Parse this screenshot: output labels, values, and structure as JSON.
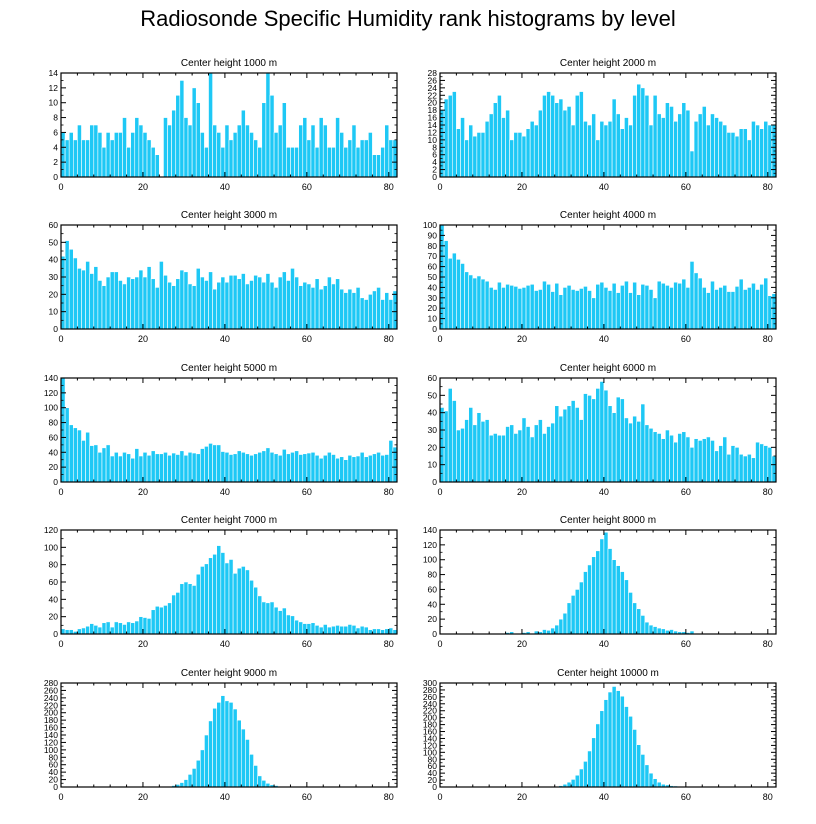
{
  "title": "Radiosonde Specific Humidity rank histograms by level",
  "bar_color": "#1ec8f5",
  "chart_data": [
    {
      "type": "bar",
      "title": "Center height 1000 m",
      "xlim": [
        0,
        82
      ],
      "xticks": [
        0,
        20,
        40,
        60,
        80
      ],
      "ylim": [
        0,
        14
      ],
      "yticks": [
        0,
        2,
        4,
        6,
        8,
        10,
        12,
        14
      ],
      "values": [
        6,
        5,
        6,
        5,
        7,
        5,
        5,
        7,
        7,
        6,
        4,
        6,
        5,
        6,
        6,
        8,
        4,
        6,
        8,
        7,
        6,
        5,
        4,
        3,
        0,
        8,
        7,
        9,
        11,
        13,
        8,
        7,
        12,
        10,
        6,
        4,
        14,
        7,
        6,
        4,
        7,
        5,
        6,
        7,
        9,
        7,
        6,
        5,
        4,
        10,
        14,
        11,
        6,
        7,
        10,
        4,
        4,
        4,
        7,
        8,
        5,
        7,
        4,
        8,
        7,
        4,
        4,
        8,
        6,
        4,
        5,
        7,
        4,
        5,
        5,
        6,
        3,
        3,
        4,
        7,
        5,
        5
      ]
    },
    {
      "type": "bar",
      "title": "Center height 2000 m",
      "xlim": [
        0,
        82
      ],
      "xticks": [
        0,
        20,
        40,
        60,
        80
      ],
      "ylim": [
        0,
        28
      ],
      "yticks": [
        0,
        2,
        4,
        6,
        8,
        10,
        12,
        14,
        16,
        18,
        20,
        22,
        24,
        26,
        28
      ],
      "values": [
        18,
        21,
        22,
        23,
        13,
        16,
        10,
        14,
        11,
        12,
        12,
        15,
        17,
        20,
        22,
        16,
        18,
        10,
        12,
        12,
        11,
        13,
        15,
        14,
        18,
        22,
        23,
        22,
        20,
        21,
        18,
        19,
        14,
        22,
        23,
        15,
        14,
        17,
        10,
        15,
        14,
        15,
        21,
        17,
        13,
        16,
        14,
        22,
        25,
        24,
        22,
        14,
        22,
        17,
        16,
        20,
        19,
        15,
        17,
        20,
        18,
        7,
        15,
        17,
        19,
        14,
        17,
        16,
        15,
        14,
        12,
        12,
        11,
        13,
        13,
        10,
        15,
        14,
        13,
        15,
        14,
        14
      ]
    },
    {
      "type": "bar",
      "title": "Center height 3000 m",
      "xlim": [
        0,
        82
      ],
      "xticks": [
        0,
        20,
        40,
        60,
        80
      ],
      "ylim": [
        0,
        60
      ],
      "yticks": [
        0,
        10,
        20,
        30,
        40,
        50,
        60
      ],
      "values": [
        42,
        51,
        46,
        41,
        35,
        34,
        39,
        32,
        36,
        28,
        25,
        30,
        33,
        33,
        28,
        26,
        30,
        29,
        30,
        34,
        30,
        36,
        29,
        24,
        39,
        31,
        27,
        25,
        29,
        34,
        33,
        26,
        25,
        35,
        30,
        28,
        33,
        23,
        27,
        30,
        27,
        31,
        31,
        29,
        32,
        26,
        28,
        31,
        30,
        27,
        32,
        27,
        24,
        30,
        33,
        28,
        35,
        30,
        25,
        27,
        26,
        24,
        29,
        23,
        25,
        30,
        26,
        29,
        23,
        21,
        23,
        21,
        24,
        18,
        17,
        20,
        22,
        24,
        17,
        21,
        17,
        22
      ]
    },
    {
      "type": "bar",
      "title": "Center height 4000 m",
      "xlim": [
        0,
        82
      ],
      "xticks": [
        0,
        20,
        40,
        60,
        80
      ],
      "ylim": [
        0,
        100
      ],
      "yticks": [
        0,
        10,
        20,
        30,
        40,
        50,
        60,
        70,
        80,
        90,
        100
      ],
      "values": [
        100,
        85,
        68,
        73,
        67,
        63,
        55,
        52,
        49,
        51,
        48,
        46,
        40,
        38,
        45,
        40,
        43,
        42,
        41,
        39,
        40,
        42,
        43,
        37,
        38,
        46,
        43,
        36,
        44,
        33,
        40,
        42,
        38,
        37,
        39,
        41,
        37,
        30,
        43,
        45,
        40,
        37,
        44,
        35,
        42,
        46,
        35,
        45,
        33,
        43,
        42,
        38,
        30,
        46,
        44,
        42,
        40,
        45,
        44,
        48,
        40,
        65,
        54,
        49,
        40,
        35,
        46,
        38,
        40,
        42,
        36,
        36,
        41,
        48,
        38,
        40,
        44,
        38,
        43,
        49,
        32,
        34
      ]
    },
    {
      "type": "bar",
      "title": "Center height 5000 m",
      "xlim": [
        0,
        82
      ],
      "xticks": [
        0,
        20,
        40,
        60,
        80
      ],
      "ylim": [
        0,
        140
      ],
      "yticks": [
        0,
        20,
        40,
        60,
        80,
        100,
        120,
        140
      ],
      "values": [
        140,
        100,
        77,
        73,
        70,
        56,
        67,
        49,
        50,
        40,
        46,
        50,
        35,
        40,
        35,
        40,
        38,
        32,
        45,
        35,
        40,
        36,
        42,
        38,
        38,
        40,
        36,
        39,
        37,
        42,
        36,
        40,
        39,
        38,
        45,
        48,
        52,
        50,
        50,
        41,
        40,
        37,
        38,
        42,
        40,
        38,
        36,
        38,
        40,
        42,
        46,
        40,
        38,
        36,
        44,
        38,
        40,
        42,
        37,
        38,
        39,
        40,
        36,
        32,
        36,
        40,
        37,
        32,
        34,
        30,
        36,
        34,
        35,
        40,
        34,
        36,
        38,
        40,
        36,
        37,
        56,
        47
      ]
    },
    {
      "type": "bar",
      "title": "Center height 6000 m",
      "xlim": [
        0,
        82
      ],
      "xticks": [
        0,
        20,
        40,
        60,
        80
      ],
      "ylim": [
        0,
        60
      ],
      "yticks": [
        0,
        10,
        20,
        30,
        40,
        50,
        60
      ],
      "values": [
        43,
        41,
        54,
        47,
        30,
        31,
        36,
        43,
        33,
        40,
        35,
        36,
        27,
        28,
        27,
        27,
        32,
        33,
        28,
        30,
        37,
        32,
        26,
        33,
        36,
        28,
        32,
        34,
        44,
        38,
        42,
        44,
        47,
        43,
        36,
        51,
        50,
        48,
        54,
        58,
        53,
        44,
        40,
        49,
        48,
        37,
        34,
        38,
        35,
        45,
        33,
        31,
        29,
        28,
        25,
        30,
        27,
        23,
        28,
        29,
        26,
        20,
        25,
        24,
        25,
        26,
        24,
        18,
        21,
        26,
        16,
        21,
        20,
        16,
        15,
        16,
        14,
        23,
        22,
        21,
        20,
        15
      ]
    },
    {
      "type": "bar",
      "title": "Center height 7000 m",
      "xlim": [
        0,
        82
      ],
      "xticks": [
        0,
        20,
        40,
        60,
        80
      ],
      "ylim": [
        0,
        120
      ],
      "yticks": [
        0,
        20,
        40,
        60,
        80,
        100,
        120
      ],
      "values": [
        6,
        5,
        5,
        3,
        6,
        7,
        9,
        12,
        10,
        8,
        13,
        14,
        8,
        14,
        13,
        11,
        14,
        13,
        15,
        20,
        19,
        18,
        28,
        32,
        31,
        33,
        36,
        45,
        48,
        58,
        60,
        58,
        56,
        69,
        78,
        81,
        88,
        92,
        102,
        94,
        82,
        86,
        70,
        76,
        78,
        74,
        62,
        54,
        44,
        37,
        36,
        37,
        31,
        27,
        30,
        22,
        21,
        16,
        14,
        12,
        12,
        13,
        10,
        8,
        11,
        8,
        9,
        10,
        9,
        9,
        11,
        10,
        7,
        9,
        8,
        5,
        6,
        6,
        5,
        6,
        7,
        5
      ]
    },
    {
      "type": "bar",
      "title": "Center height 8000 m",
      "xlim": [
        0,
        82
      ],
      "xticks": [
        0,
        20,
        40,
        60,
        80
      ],
      "ylim": [
        0,
        140
      ],
      "yticks": [
        0,
        20,
        40,
        60,
        80,
        100,
        120,
        140
      ],
      "values": [
        0,
        0,
        0,
        0,
        0,
        0,
        0,
        0,
        0,
        0,
        0,
        0,
        0,
        0,
        0,
        1,
        2,
        3,
        1,
        1,
        2,
        3,
        1,
        4,
        3,
        6,
        5,
        8,
        12,
        20,
        28,
        42,
        52,
        60,
        70,
        84,
        93,
        104,
        112,
        128,
        137,
        115,
        100,
        92,
        84,
        73,
        56,
        42,
        34,
        25,
        16,
        12,
        10,
        8,
        7,
        5,
        6,
        4,
        3,
        3,
        2,
        4,
        1,
        1,
        1,
        1,
        0,
        0,
        0,
        0,
        0,
        0,
        0,
        0,
        0,
        0,
        0,
        0,
        0,
        0,
        0,
        0
      ]
    },
    {
      "type": "bar",
      "title": "Center height 9000 m",
      "xlim": [
        0,
        82
      ],
      "xticks": [
        0,
        20,
        40,
        60,
        80
      ],
      "ylim": [
        0,
        280
      ],
      "yticks": [
        0,
        20,
        40,
        60,
        80,
        100,
        120,
        140,
        160,
        180,
        200,
        220,
        240,
        260,
        280
      ],
      "values": [
        0,
        0,
        0,
        0,
        0,
        0,
        0,
        0,
        0,
        0,
        0,
        0,
        0,
        0,
        0,
        0,
        0,
        0,
        0,
        0,
        0,
        0,
        0,
        0,
        0,
        1,
        2,
        4,
        7,
        12,
        20,
        34,
        50,
        72,
        100,
        140,
        178,
        212,
        228,
        246,
        232,
        228,
        210,
        180,
        156,
        128,
        88,
        58,
        30,
        18,
        10,
        6,
        4,
        2,
        1,
        1,
        0,
        0,
        0,
        0,
        0,
        0,
        0,
        0,
        0,
        0,
        0,
        0,
        0,
        0,
        0,
        0,
        0,
        0,
        0,
        0,
        0,
        0,
        0,
        0,
        0,
        0
      ]
    },
    {
      "type": "bar",
      "title": "Center height 10000 m",
      "xlim": [
        0,
        82
      ],
      "xticks": [
        0,
        20,
        40,
        60,
        80
      ],
      "ylim": [
        0,
        300
      ],
      "yticks": [
        0,
        20,
        40,
        60,
        80,
        100,
        120,
        140,
        160,
        180,
        200,
        220,
        240,
        260,
        280,
        300
      ],
      "values": [
        0,
        0,
        0,
        0,
        0,
        0,
        0,
        0,
        0,
        0,
        0,
        0,
        0,
        0,
        0,
        0,
        0,
        0,
        0,
        0,
        0,
        0,
        0,
        0,
        0,
        0,
        0,
        1,
        2,
        4,
        8,
        14,
        22,
        34,
        52,
        74,
        104,
        142,
        182,
        220,
        252,
        274,
        290,
        278,
        262,
        232,
        204,
        166,
        122,
        94,
        64,
        40,
        24,
        14,
        8,
        6,
        4,
        3,
        2,
        1,
        1,
        1,
        0,
        0,
        0,
        0,
        0,
        0,
        0,
        0,
        0,
        0,
        0,
        0,
        0,
        0,
        0,
        0,
        0,
        0,
        0,
        0
      ]
    }
  ]
}
